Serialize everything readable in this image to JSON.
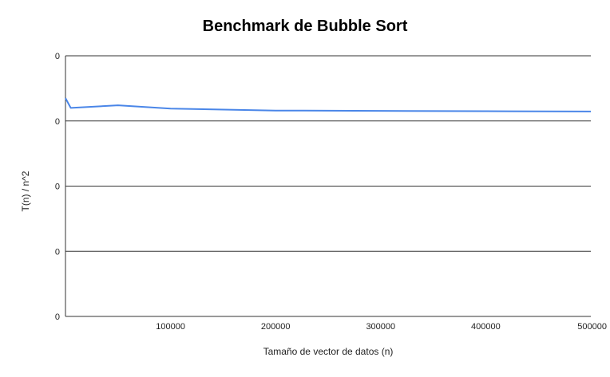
{
  "chart_data": {
    "type": "line",
    "title": "Benchmark de Bubble Sort",
    "xlabel": "Tamaño de vector de datos (n)",
    "ylabel": "T(n) / n^2",
    "xlim": [
      0,
      500000
    ],
    "ylim": [
      0,
      4
    ],
    "x_ticks": [
      100000,
      200000,
      300000,
      400000,
      500000
    ],
    "x_tick_labels": [
      "100000",
      "200000",
      "300000",
      "400000",
      "500000"
    ],
    "y_ticks": [
      0,
      1,
      2,
      3,
      4
    ],
    "y_tick_labels": [
      "0",
      "0",
      "0",
      "0",
      "0"
    ],
    "grid": true,
    "series": [
      {
        "color": "#4a86e8",
        "x": [
          0,
          5000,
          50000,
          100000,
          200000,
          300000,
          400000,
          500000
        ],
        "y": [
          3.35,
          3.2,
          3.24,
          3.19,
          3.16,
          3.155,
          3.15,
          3.145
        ]
      }
    ]
  }
}
